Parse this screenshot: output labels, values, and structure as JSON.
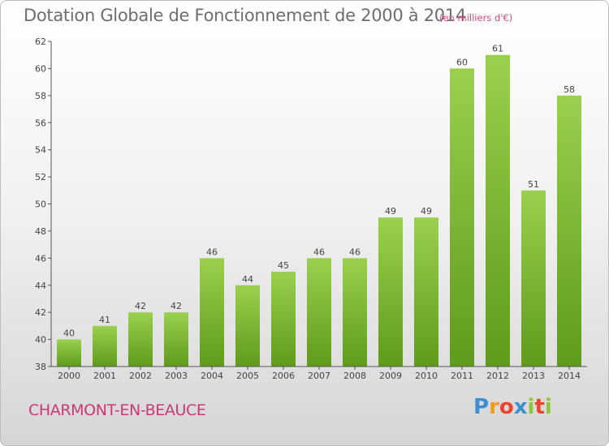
{
  "title": "Dotation Globale de Fonctionnement de 2000 à 2014",
  "unit": "(en milliers d'€)",
  "commune": "CHARMONT-EN-BEAUCE",
  "logo": {
    "text": "Proxiti",
    "letters": [
      "P",
      "r",
      "o",
      "x",
      "i",
      "t",
      "i"
    ],
    "colors": [
      "#3f8fd0",
      "#f29a1c",
      "#e8452c",
      "#3f8fd0",
      "#8cc63f",
      "#e8452c",
      "#8cc63f"
    ]
  },
  "colors": {
    "bar_top": "#9bcf4f",
    "bar_bottom": "#5f9b1c",
    "title": "#6e6e6e",
    "accent": "#c93a72"
  },
  "chart_data": {
    "type": "bar",
    "title": "Dotation Globale de Fonctionnement de 2000 à 2014",
    "subtitle": "(en milliers d'€)",
    "categories": [
      "2000",
      "2001",
      "2002",
      "2003",
      "2004",
      "2005",
      "2006",
      "2007",
      "2008",
      "2009",
      "2010",
      "2011",
      "2012",
      "2013",
      "2014"
    ],
    "values": [
      40,
      41,
      42,
      42,
      46,
      44,
      45,
      46,
      46,
      49,
      49,
      60,
      61,
      51,
      58
    ],
    "ylim": [
      38,
      62
    ],
    "yticks": [
      "38",
      "40",
      "42",
      "44",
      "46",
      "48",
      "50",
      "52",
      "54",
      "56",
      "58",
      "60",
      "62"
    ],
    "grid": false,
    "data_labels": true
  }
}
